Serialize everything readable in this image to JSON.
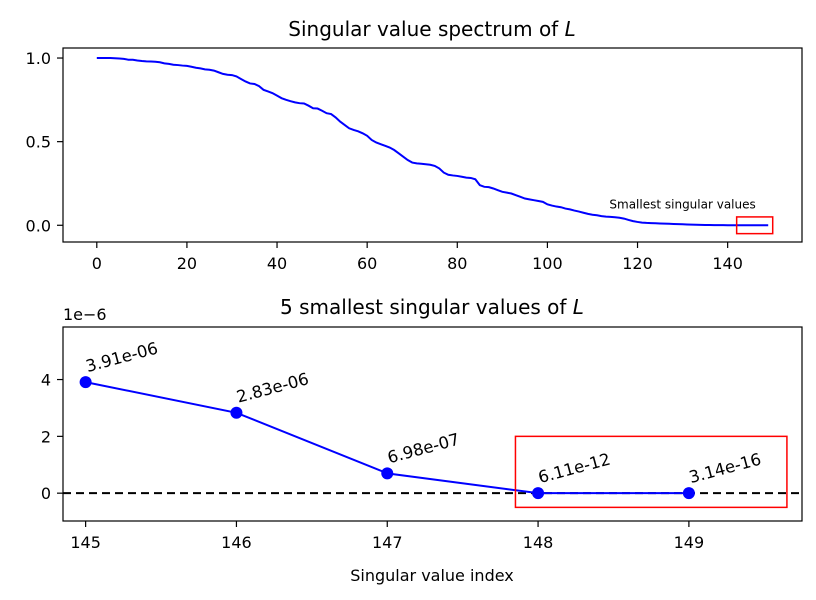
{
  "chart_data": [
    {
      "type": "line",
      "title": "Singular value spectrum of L",
      "title_prefix": "Singular value spectrum of ",
      "title_var": "L",
      "xlim": [
        -7.5,
        156.5
      ],
      "ylim": [
        -0.1,
        1.06
      ],
      "xticks": [
        0,
        20,
        40,
        60,
        80,
        100,
        120,
        140
      ],
      "yticks": [
        0.0,
        0.5,
        1.0
      ],
      "ytick_labels": [
        "0.0",
        "0.5",
        "1.0"
      ],
      "grid": false,
      "series": [
        {
          "color": "#0000ff",
          "x": [
            0,
            1,
            2,
            3,
            4,
            5,
            6,
            7,
            8,
            9,
            10,
            11,
            12,
            13,
            14,
            15,
            16,
            17,
            18,
            19,
            20,
            21,
            22,
            23,
            24,
            25,
            26,
            27,
            28,
            29,
            30,
            31,
            32,
            33,
            34,
            35,
            36,
            37,
            38,
            39,
            40,
            41,
            42,
            43,
            44,
            45,
            46,
            47,
            48,
            49,
            50,
            51,
            52,
            53,
            54,
            55,
            56,
            57,
            58,
            59,
            60,
            61,
            62,
            63,
            64,
            65,
            66,
            67,
            68,
            69,
            70,
            71,
            72,
            73,
            74,
            75,
            76,
            77,
            78,
            79,
            80,
            81,
            82,
            83,
            84,
            85,
            86,
            87,
            88,
            89,
            90,
            91,
            92,
            93,
            94,
            95,
            96,
            97,
            98,
            99,
            100,
            101,
            102,
            103,
            104,
            105,
            106,
            107,
            108,
            109,
            110,
            111,
            112,
            113,
            114,
            115,
            116,
            117,
            118,
            119,
            120,
            121,
            122,
            123,
            124,
            125,
            126,
            127,
            128,
            129,
            130,
            131,
            132,
            133,
            134,
            135,
            136,
            137,
            138,
            139,
            140,
            141,
            142,
            143,
            144,
            145,
            146,
            147,
            148,
            149
          ],
          "values": [
            1.0,
            1.0,
            1.0,
            1.0,
            0.999,
            0.997,
            0.995,
            0.99,
            0.99,
            0.985,
            0.982,
            0.98,
            0.979,
            0.978,
            0.975,
            0.968,
            0.965,
            0.96,
            0.958,
            0.955,
            0.953,
            0.948,
            0.942,
            0.938,
            0.932,
            0.93,
            0.925,
            0.915,
            0.905,
            0.9,
            0.898,
            0.89,
            0.875,
            0.86,
            0.848,
            0.845,
            0.832,
            0.81,
            0.8,
            0.79,
            0.775,
            0.76,
            0.75,
            0.742,
            0.735,
            0.73,
            0.728,
            0.715,
            0.7,
            0.698,
            0.685,
            0.67,
            0.665,
            0.645,
            0.62,
            0.6,
            0.58,
            0.57,
            0.562,
            0.55,
            0.535,
            0.51,
            0.495,
            0.485,
            0.475,
            0.465,
            0.45,
            0.43,
            0.41,
            0.39,
            0.375,
            0.37,
            0.368,
            0.365,
            0.362,
            0.355,
            0.34,
            0.315,
            0.302,
            0.298,
            0.295,
            0.29,
            0.285,
            0.283,
            0.275,
            0.24,
            0.23,
            0.228,
            0.22,
            0.21,
            0.2,
            0.195,
            0.19,
            0.18,
            0.17,
            0.16,
            0.155,
            0.15,
            0.145,
            0.14,
            0.125,
            0.118,
            0.112,
            0.108,
            0.1,
            0.095,
            0.088,
            0.082,
            0.075,
            0.068,
            0.063,
            0.06,
            0.055,
            0.052,
            0.05,
            0.048,
            0.045,
            0.04,
            0.032,
            0.025,
            0.02,
            0.016,
            0.014,
            0.013,
            0.012,
            0.011,
            0.01,
            0.009,
            0.008,
            0.007,
            0.006,
            0.005,
            0.004,
            0.003,
            0.0025,
            0.002,
            0.0015,
            0.001,
            0.0008,
            0.0006,
            0.0005,
            0.0004,
            0.0003,
            0.0002,
            0.0001,
            3.9e-06,
            2.8e-06,
            7e-07,
            0.0,
            0.0
          ]
        }
      ],
      "annotation_text": "Smallest singular values",
      "highlight_box": {
        "x0": 142,
        "x1": 150,
        "y0": -0.05,
        "y1": 0.05,
        "color": "#ff0000"
      }
    },
    {
      "type": "line",
      "title": "5 smallest singular values of L",
      "title_prefix": "5 smallest singular values of ",
      "title_var": "L",
      "xlabel": "Singular value index",
      "y_offset_label": "1e−6",
      "xlim": [
        144.85,
        149.75
      ],
      "ylim": [
        -0.98,
        5.85
      ],
      "xticks": [
        145,
        146,
        147,
        148,
        149
      ],
      "yticks": [
        0,
        2,
        4
      ],
      "grid": false,
      "series": [
        {
          "color": "#0000ff",
          "marker": "circle",
          "x": [
            145,
            146,
            147,
            148,
            149
          ],
          "values": [
            3.91e-06,
            2.83e-06,
            6.98e-07,
            6.11e-12,
            3.14e-16
          ],
          "value_labels": [
            "3.91e-06",
            "2.83e-06",
            "6.98e-07",
            "6.11e-12",
            "3.14e-16"
          ]
        }
      ],
      "reference_line": {
        "y": 0,
        "style": "dashed",
        "color": "#000000"
      },
      "highlight_box": {
        "x0": 147.85,
        "x1": 149.65,
        "y0": -0.5,
        "y1": 2.0,
        "color": "#ff0000"
      }
    }
  ]
}
